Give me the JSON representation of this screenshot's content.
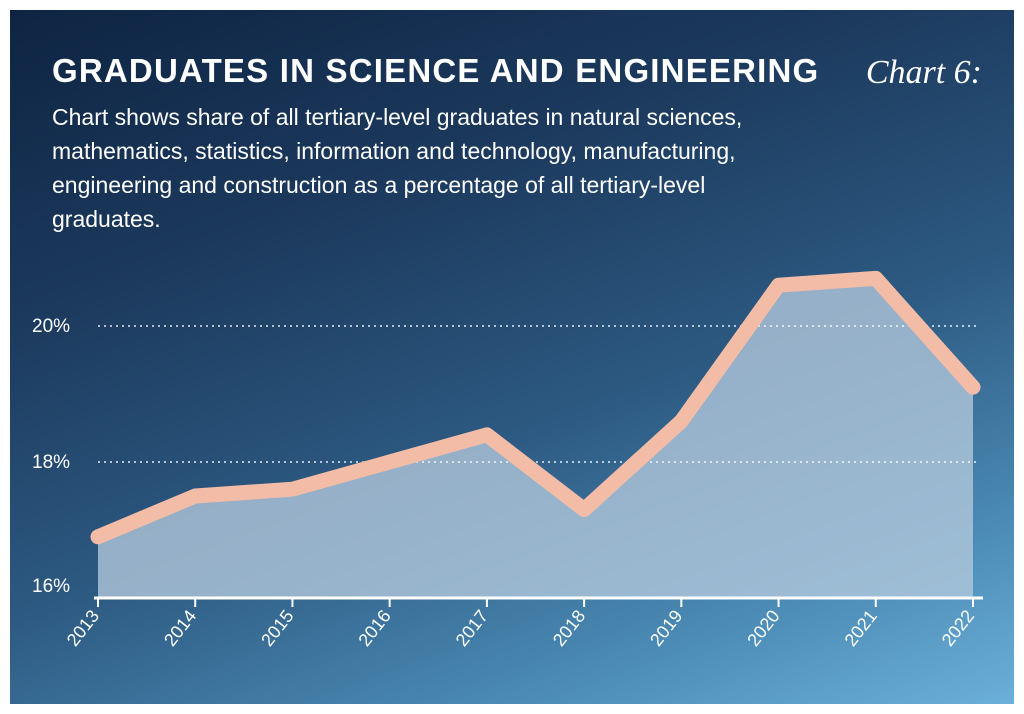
{
  "header": {
    "title": "GRADUATES IN SCIENCE AND ENGINEERING",
    "chart_number": "Chart 6:",
    "subtitle": "Chart shows share of all tertiary-level graduates in natural sciences, mathematics, statistics, information and technology, manufacturing, engineering and construction as a percentage of all tertiary-level graduates."
  },
  "colors": {
    "background_top": "#0e2442",
    "background_bottom": "#6bb0da",
    "line": "#f2bca6",
    "area_fill": "#b4c9dc",
    "axis": "#ffffff",
    "grid": "#ffffff"
  },
  "chart_data": {
    "type": "area",
    "title": "GRADUATES IN SCIENCE AND ENGINEERING",
    "x": [
      "2013",
      "2014",
      "2015",
      "2016",
      "2017",
      "2018",
      "2019",
      "2020",
      "2021",
      "2022"
    ],
    "series": [
      {
        "values": [
          16.9,
          17.5,
          17.6,
          18.0,
          18.4,
          17.3,
          18.6,
          20.6,
          20.7,
          19.1
        ]
      }
    ],
    "ylim": [
      16,
      21
    ],
    "yticks": [
      16,
      18,
      20
    ],
    "ytick_labels": [
      "16%",
      "18%",
      "20%"
    ],
    "gridlines": [
      18,
      20
    ],
    "grid": true,
    "legend": "none",
    "xlabel": "",
    "ylabel": ""
  }
}
